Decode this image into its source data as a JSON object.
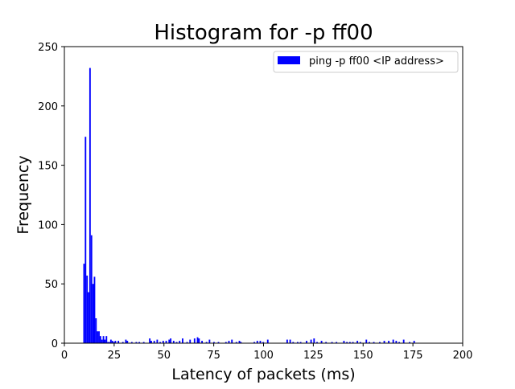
{
  "chart_data": {
    "type": "bar",
    "title": "Histogram for -p ff00",
    "xlabel": "Latency of packets (ms)",
    "ylabel": "Frequency",
    "xlim": [
      0,
      200
    ],
    "ylim": [
      0,
      250
    ],
    "xticks": [
      0,
      25,
      50,
      75,
      100,
      125,
      150,
      175,
      200
    ],
    "yticks": [
      0,
      50,
      100,
      150,
      200,
      250
    ],
    "bin_width": 0.75,
    "grid": false,
    "legend_position": "top-right",
    "series": [
      {
        "name": "ping -p ff00 <IP address>",
        "color": "#0000ff",
        "bins": [
          [
            9.5,
            67
          ],
          [
            10.25,
            174
          ],
          [
            11.0,
            57
          ],
          [
            11.75,
            43
          ],
          [
            12.5,
            232
          ],
          [
            13.25,
            91
          ],
          [
            14.0,
            50
          ],
          [
            14.75,
            56
          ],
          [
            15.5,
            21
          ],
          [
            16.25,
            10
          ],
          [
            17.0,
            10
          ],
          [
            17.75,
            6
          ],
          [
            18.5,
            3
          ],
          [
            19.25,
            6
          ],
          [
            20.0,
            3
          ],
          [
            20.75,
            6
          ],
          [
            21.5,
            1
          ],
          [
            22.25,
            1
          ],
          [
            23.0,
            3
          ],
          [
            23.75,
            2
          ],
          [
            24.5,
            1
          ],
          [
            25.25,
            2
          ],
          [
            26.75,
            2
          ],
          [
            29.0,
            1
          ],
          [
            30.5,
            3
          ],
          [
            31.25,
            2
          ],
          [
            33.5,
            1
          ],
          [
            35.75,
            1
          ],
          [
            37.25,
            1
          ],
          [
            39.5,
            1
          ],
          [
            42.5,
            4
          ],
          [
            43.25,
            2
          ],
          [
            44.75,
            2
          ],
          [
            46.25,
            3
          ],
          [
            47.75,
            1
          ],
          [
            49.25,
            2
          ],
          [
            50.75,
            2
          ],
          [
            52.25,
            3
          ],
          [
            53.0,
            4
          ],
          [
            54.5,
            2
          ],
          [
            56.0,
            1
          ],
          [
            57.5,
            2
          ],
          [
            59.0,
            4
          ],
          [
            61.25,
            1
          ],
          [
            62.75,
            3
          ],
          [
            65.0,
            4
          ],
          [
            66.5,
            5
          ],
          [
            67.25,
            4
          ],
          [
            68.75,
            2
          ],
          [
            71.0,
            1
          ],
          [
            72.5,
            3
          ],
          [
            74.75,
            1
          ],
          [
            77.0,
            1
          ],
          [
            80.75,
            1
          ],
          [
            82.25,
            2
          ],
          [
            83.75,
            3
          ],
          [
            86.0,
            1
          ],
          [
            87.5,
            2
          ],
          [
            88.25,
            1
          ],
          [
            95.0,
            1
          ],
          [
            96.5,
            2
          ],
          [
            98.0,
            2
          ],
          [
            99.5,
            1
          ],
          [
            101.75,
            3
          ],
          [
            111.5,
            3
          ],
          [
            113.0,
            3
          ],
          [
            114.5,
            1
          ],
          [
            116.75,
            1
          ],
          [
            118.25,
            1
          ],
          [
            121.25,
            2
          ],
          [
            123.5,
            3
          ],
          [
            125.0,
            4
          ],
          [
            126.5,
            1
          ],
          [
            128.75,
            2
          ],
          [
            131.0,
            1
          ],
          [
            134.0,
            1
          ],
          [
            136.25,
            1
          ],
          [
            140.0,
            2
          ],
          [
            141.5,
            1
          ],
          [
            143.0,
            1
          ],
          [
            144.5,
            1
          ],
          [
            146.75,
            2
          ],
          [
            148.25,
            1
          ],
          [
            151.25,
            3
          ],
          [
            152.75,
            1
          ],
          [
            155.0,
            1
          ],
          [
            158.0,
            1
          ],
          [
            160.25,
            2
          ],
          [
            162.5,
            2
          ],
          [
            164.75,
            3
          ],
          [
            166.25,
            2
          ],
          [
            167.75,
            1
          ],
          [
            170.0,
            3
          ],
          [
            173.0,
            1
          ],
          [
            175.25,
            2
          ]
        ]
      }
    ]
  }
}
